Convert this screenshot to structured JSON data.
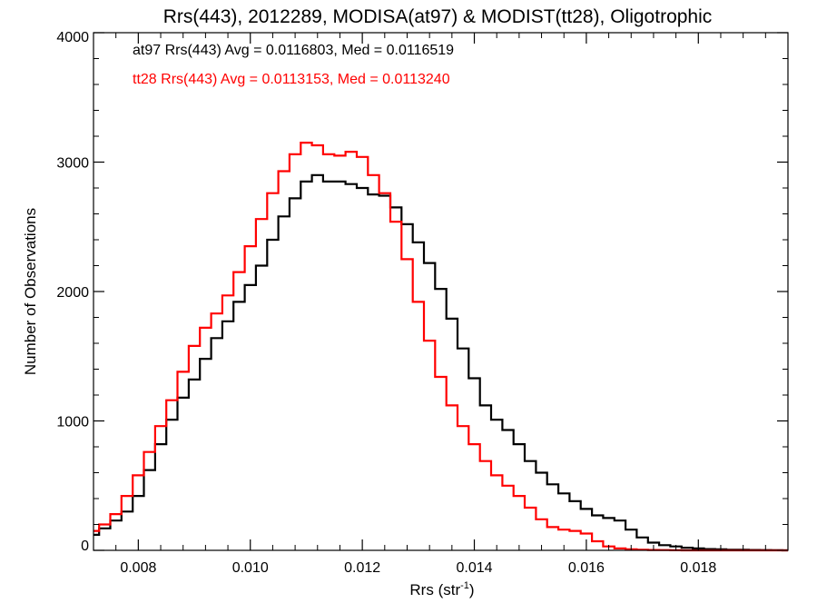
{
  "chart_data": {
    "type": "line",
    "step": true,
    "title": "Rrs(443), 2012289, MODISA(at97) & MODIST(tt28), Oligotrophic",
    "xlabel": "Rrs (str",
    "xlabel_sup": "-1",
    "xlabel_suffix": ")",
    "ylabel": "Number of Observations",
    "xlim": [
      0.0072,
      0.0196
    ],
    "ylim": [
      0,
      4000
    ],
    "x_ticks": [
      0.008,
      0.01,
      0.012,
      0.014,
      0.016,
      0.018
    ],
    "x_tick_labels": [
      "0.008",
      "0.010",
      "0.012",
      "0.014",
      "0.016",
      "0.018"
    ],
    "y_ticks": [
      0,
      1000,
      2000,
      3000,
      4000
    ],
    "y_tick_labels": [
      "0",
      "1000",
      "2000",
      "3000",
      "4000"
    ],
    "grid": false,
    "annotations": [
      {
        "text": "at97 Rrs(443) Avg = 0.0116803, Med = 0.0116519",
        "color": "#000000"
      },
      {
        "text": "tt28 Rrs(443) Avg = 0.0113153, Med = 0.0113240",
        "color": "#ff0000"
      }
    ],
    "series": [
      {
        "color": "#000000",
        "x": [
          0.0072,
          0.0074,
          0.0076,
          0.0078,
          0.008,
          0.0082,
          0.0084,
          0.0086,
          0.0088,
          0.009,
          0.0092,
          0.0094,
          0.0096,
          0.0098,
          0.01,
          0.0102,
          0.0104,
          0.0106,
          0.0108,
          0.011,
          0.0112,
          0.0114,
          0.0116,
          0.0118,
          0.012,
          0.0122,
          0.0124,
          0.0126,
          0.0128,
          0.013,
          0.0132,
          0.0134,
          0.0136,
          0.0138,
          0.014,
          0.0142,
          0.0144,
          0.0146,
          0.0148,
          0.015,
          0.0152,
          0.0154,
          0.0156,
          0.0158,
          0.016,
          0.0162,
          0.0164,
          0.0166,
          0.0168,
          0.017,
          0.0172,
          0.0174,
          0.0176,
          0.0178,
          0.018,
          0.0182,
          0.0184,
          0.0186,
          0.0188,
          0.019,
          0.0192,
          0.0194,
          0.0196
        ],
        "values": [
          120,
          170,
          230,
          300,
          420,
          620,
          820,
          1010,
          1180,
          1320,
          1480,
          1640,
          1770,
          1920,
          2050,
          2200,
          2400,
          2580,
          2720,
          2850,
          2900,
          2850,
          2850,
          2830,
          2800,
          2750,
          2740,
          2650,
          2520,
          2380,
          2220,
          2020,
          1790,
          1560,
          1330,
          1120,
          1010,
          930,
          820,
          690,
          600,
          510,
          440,
          380,
          320,
          270,
          250,
          230,
          160,
          100,
          60,
          40,
          30,
          20,
          15,
          10,
          8,
          5,
          4,
          3,
          2,
          1,
          0
        ]
      },
      {
        "color": "#ff0000",
        "x": [
          0.0072,
          0.0074,
          0.0076,
          0.0078,
          0.008,
          0.0082,
          0.0084,
          0.0086,
          0.0088,
          0.009,
          0.0092,
          0.0094,
          0.0096,
          0.0098,
          0.01,
          0.0102,
          0.0104,
          0.0106,
          0.0108,
          0.011,
          0.0112,
          0.0114,
          0.0116,
          0.0118,
          0.012,
          0.0122,
          0.0124,
          0.0126,
          0.0128,
          0.013,
          0.0132,
          0.0134,
          0.0136,
          0.0138,
          0.014,
          0.0142,
          0.0144,
          0.0146,
          0.0148,
          0.015,
          0.0152,
          0.0154,
          0.0156,
          0.0158,
          0.016,
          0.0162,
          0.0164,
          0.0166,
          0.0168,
          0.017,
          0.0172,
          0.0174,
          0.0176,
          0.0178,
          0.018,
          0.0182,
          0.0184,
          0.0186,
          0.0188,
          0.019,
          0.0192,
          0.0194,
          0.0196
        ],
        "values": [
          150,
          200,
          280,
          420,
          580,
          760,
          960,
          1160,
          1380,
          1580,
          1720,
          1830,
          1970,
          2150,
          2350,
          2560,
          2760,
          2930,
          3060,
          3150,
          3130,
          3060,
          3050,
          3080,
          3040,
          2900,
          2760,
          2540,
          2250,
          1920,
          1620,
          1340,
          1120,
          960,
          820,
          690,
          580,
          500,
          420,
          330,
          240,
          180,
          160,
          150,
          130,
          70,
          30,
          15,
          8,
          5,
          3,
          2,
          1,
          0,
          0,
          0,
          0,
          0,
          0,
          0,
          0,
          0,
          0
        ]
      }
    ]
  }
}
